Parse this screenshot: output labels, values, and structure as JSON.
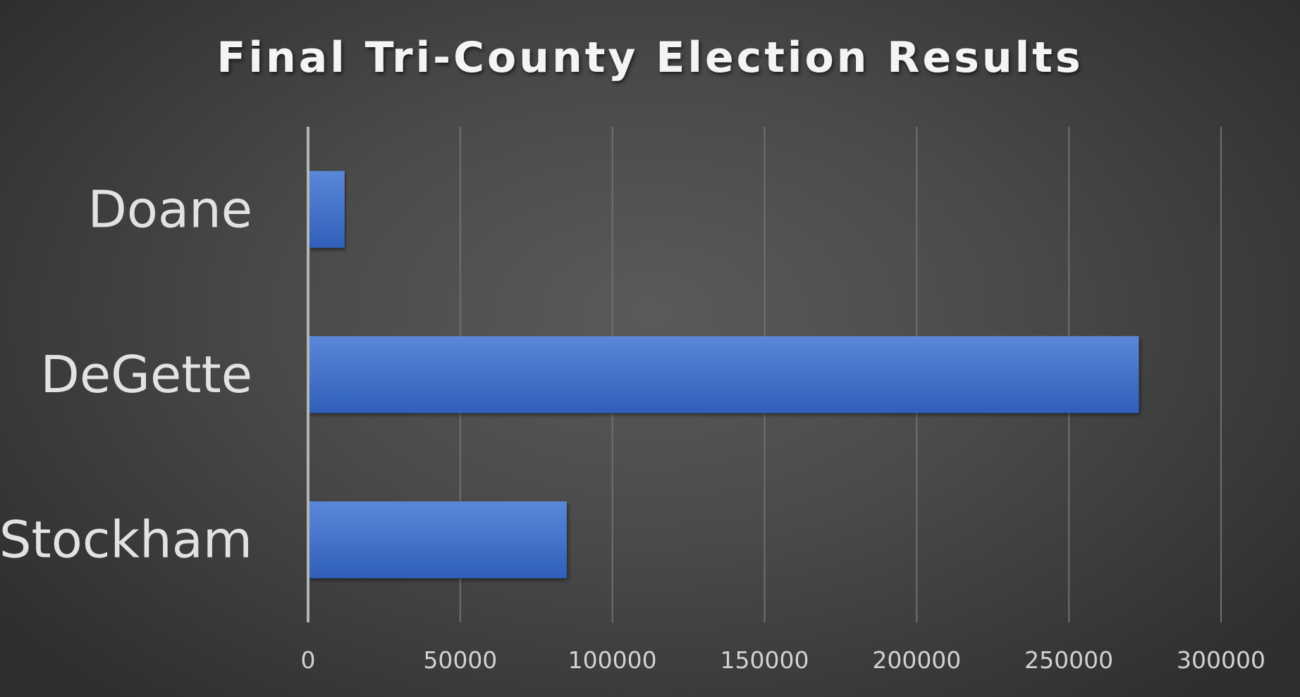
{
  "chart_data": {
    "type": "bar",
    "orientation": "horizontal",
    "title": "Final Tri-County Election Results",
    "xlabel": "",
    "ylabel": "",
    "categories": [
      "Doane",
      "DeGette",
      "Stockham"
    ],
    "values": [
      12000,
      273000,
      85000
    ],
    "xlim": [
      0,
      300000
    ],
    "ticks": [
      "0",
      "50000",
      "100000",
      "150000",
      "200000",
      "250000",
      "300000"
    ],
    "tick_values": [
      0,
      50000,
      100000,
      150000,
      200000,
      250000,
      300000
    ],
    "grid": true,
    "legend": "none",
    "bar_color": "#4a76cf",
    "bar_color_light": "#5b87d8",
    "bar_color_dark": "#2f5fba"
  }
}
